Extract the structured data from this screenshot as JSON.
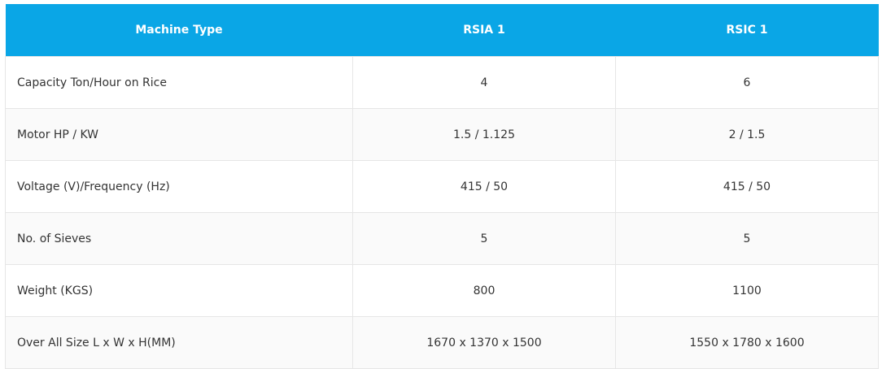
{
  "table": {
    "header": [
      "Machine Type",
      "RSIA 1",
      "RSIC 1"
    ],
    "rows": [
      [
        "Capacity Ton/Hour on Rice",
        "4",
        "6"
      ],
      [
        "Motor HP / KW",
        "1.5 / 1.125",
        "2 / 1.5"
      ],
      [
        "Voltage (V)/Frequency (Hz)",
        "415 / 50",
        "415 / 50"
      ],
      [
        "No. of Sieves",
        "5",
        "5"
      ],
      [
        "Weight (KGS)",
        "800",
        "1100"
      ],
      [
        "Over All Size L x W x H(MM)",
        "1670 x 1370 x 1500",
        "1550 x 1780 x 1600"
      ]
    ]
  }
}
